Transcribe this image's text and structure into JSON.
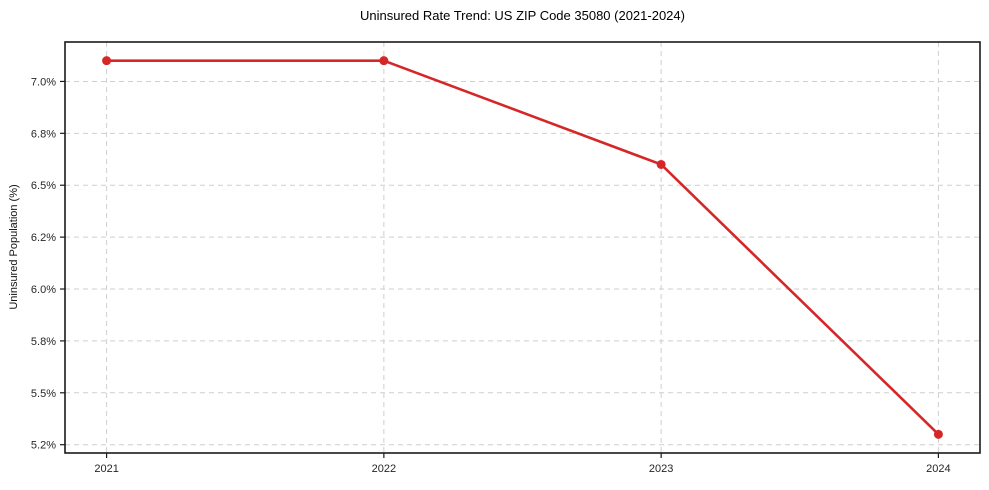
{
  "chart_data": {
    "type": "line",
    "title": "Uninsured Rate Trend: US ZIP Code 35080 (2021-2024)",
    "xlabel": "",
    "ylabel": "Uninsured Population (%)",
    "x": [
      2021,
      2022,
      2023,
      2024
    ],
    "series": [
      {
        "values": [
          7.1,
          7.1,
          6.6,
          5.3
        ]
      }
    ],
    "x_ticks": [
      {
        "value": 2021,
        "label": "2021"
      },
      {
        "value": 2022,
        "label": "2022"
      },
      {
        "value": 2023,
        "label": "2023"
      },
      {
        "value": 2024,
        "label": "2024"
      }
    ],
    "y_ticks": [
      {
        "value": 7.0,
        "label": "7.0%"
      },
      {
        "value": 6.75,
        "label": "6.8%"
      },
      {
        "value": 6.5,
        "label": "6.5%"
      },
      {
        "value": 6.25,
        "label": "6.2%"
      },
      {
        "value": 6.0,
        "label": "6.0%"
      },
      {
        "value": 5.75,
        "label": "5.8%"
      },
      {
        "value": 5.5,
        "label": "5.5%"
      },
      {
        "value": 5.25,
        "label": "5.2%"
      }
    ],
    "xlim": [
      2020.85,
      2024.15
    ],
    "ylim": [
      5.21,
      7.19
    ],
    "grid": true,
    "legend": false,
    "line_color": "#d62728",
    "grid_color": "#cfcfcf",
    "spine_color": "#1a1a1a",
    "background": "#ffffff",
    "marker": "circle"
  }
}
